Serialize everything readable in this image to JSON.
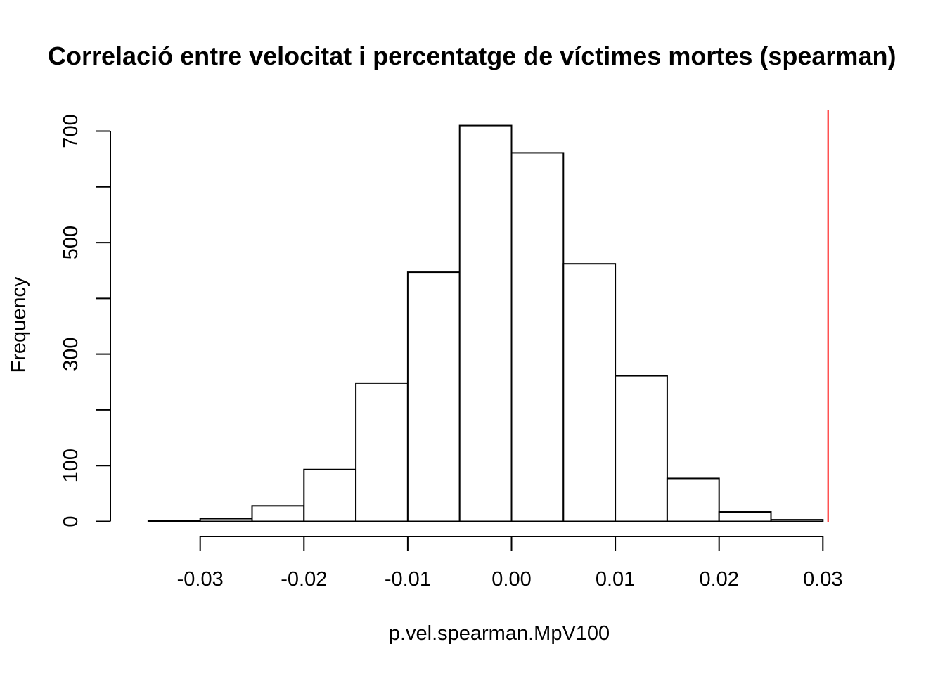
{
  "chart_data": {
    "type": "bar",
    "title": "Correlació entre velocitat i percentatge de víctimes mortes (spearman)",
    "xlabel": "p.vel.spearman.MpV100",
    "ylabel": "Frequency",
    "bin_edges": [
      -0.035,
      -0.03,
      -0.025,
      -0.02,
      -0.015,
      -0.01,
      -0.005,
      0.0,
      0.005,
      0.01,
      0.015,
      0.02,
      0.025,
      0.03
    ],
    "values": [
      1,
      5,
      28,
      93,
      248,
      447,
      710,
      661,
      462,
      261,
      77,
      17,
      3
    ],
    "xlim": [
      -0.035,
      0.0305
    ],
    "ylim": [
      0,
      700
    ],
    "x_ticks": [
      -0.03,
      -0.02,
      -0.01,
      0.0,
      0.01,
      0.02,
      0.03
    ],
    "x_tick_labels": [
      "-0.03",
      "-0.02",
      "-0.01",
      "0.00",
      "0.01",
      "0.02",
      "0.03"
    ],
    "y_ticks": [
      0,
      100,
      200,
      300,
      400,
      500,
      600,
      700
    ],
    "y_tick_labels": [
      "0",
      "100",
      "",
      "300",
      "",
      "500",
      "",
      "700"
    ],
    "vline": {
      "x": 0.0305,
      "color": "#ff0000"
    },
    "bar_fill": "#ffffff",
    "bar_stroke": "#000000",
    "grid": false,
    "legend": "none"
  }
}
